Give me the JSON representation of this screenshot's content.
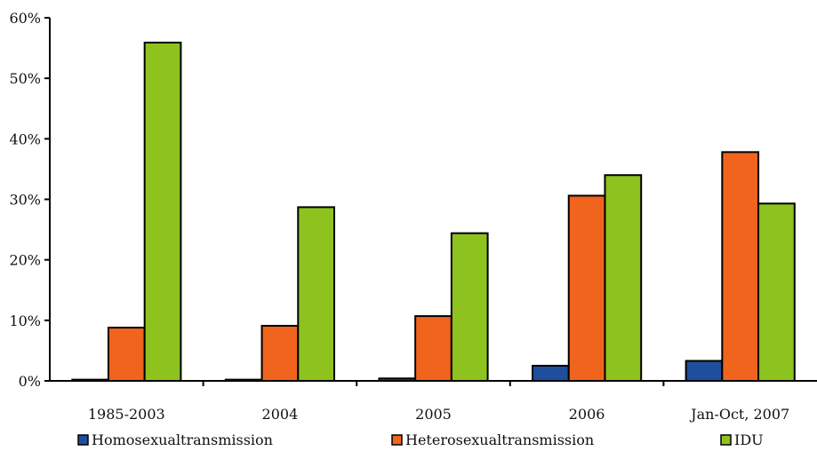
{
  "chart_data": {
    "type": "bar",
    "title": "",
    "xlabel": "",
    "ylabel": "",
    "categories": [
      "1985-2003",
      "2004",
      "2005",
      "2006",
      "Jan-Oct, 2007"
    ],
    "series": [
      {
        "name": "Homosexualtransmission",
        "color": "#1F4E9C",
        "values": [
          0.2,
          0.2,
          0.4,
          2.5,
          3.3
        ]
      },
      {
        "name": "Heterosexualtransmission",
        "color": "#F0641E",
        "values": [
          8.8,
          9.1,
          10.7,
          30.6,
          37.8
        ]
      },
      {
        "name": "IDU",
        "color": "#8DC21F",
        "values": [
          55.9,
          28.7,
          24.4,
          34.0,
          29.3
        ]
      }
    ],
    "ylim": [
      0,
      60
    ],
    "yticks": [
      0,
      10,
      20,
      30,
      40,
      50,
      60
    ],
    "ytick_labels": [
      "0%",
      "10%",
      "20%",
      "30%",
      "40%",
      "50%",
      "60%"
    ],
    "legend_position": "bottom",
    "grid": false
  }
}
